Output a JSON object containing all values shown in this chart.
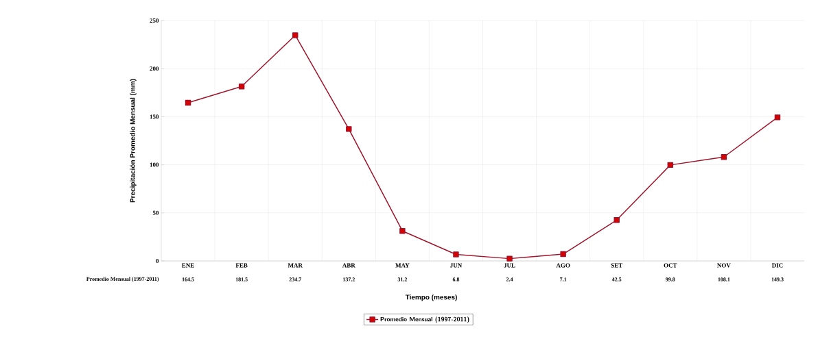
{
  "chart_data": {
    "type": "line",
    "xlabel": "Tiempo (meses)",
    "ylabel": "Precipitación Promedio Mensual (mm)",
    "categories": [
      "ENE",
      "FEB",
      "MAR",
      "ABR",
      "MAY",
      "JUN",
      "JUL",
      "AGO",
      "SET",
      "OCT",
      "NOV",
      "DIC"
    ],
    "series": [
      {
        "name": "Promedio Mensual (1997-2011)",
        "color": "#a0142a",
        "values": [
          164.5,
          181.5,
          234.7,
          137.2,
          31.2,
          6.8,
          2.4,
          7.1,
          42.5,
          99.8,
          108.1,
          149.3
        ]
      }
    ],
    "ylim": [
      0,
      250
    ],
    "yticks": [
      0,
      50,
      100,
      150,
      200,
      250
    ],
    "grid": true,
    "legend": "bottom",
    "marker": "square",
    "line_style": "solid",
    "data_labels": true
  }
}
